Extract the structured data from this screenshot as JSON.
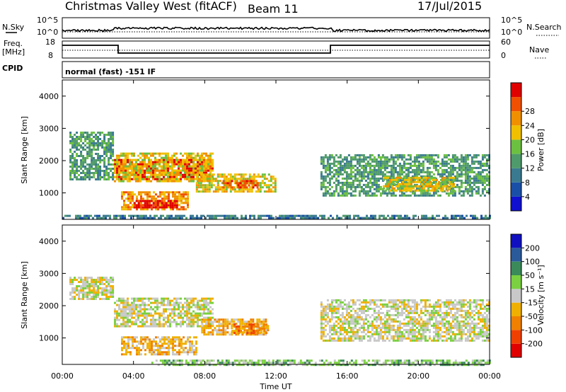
{
  "header": {
    "station": "Christmas Valley West (fitACF)",
    "beam": "Beam 11",
    "date": "17/Jul/2015"
  },
  "top_panels": {
    "nsky_label": "N.Sky",
    "nsky_ticks": [
      "10^5",
      "10^0"
    ],
    "nsearch_label": "N.Search",
    "nsearch_ticks": [
      "10^5",
      "10^0"
    ],
    "freq_label": "Freq.",
    "freq_unit": "[MHz]",
    "freq_ticks": [
      "18",
      "8"
    ],
    "nave_label": "Nave",
    "nave_ticks": [
      "60",
      "0"
    ],
    "cpid_label": "CPID",
    "cpid_text": "normal (fast) -151 IF"
  },
  "colors": {
    "power": [
      "#1010d0",
      "#1a4fa8",
      "#3a7a90",
      "#4f9a6a",
      "#6cc040",
      "#f0c000",
      "#f09000",
      "#f05000",
      "#e00000"
    ],
    "velocity": [
      "#e00000",
      "#f04000",
      "#f08000",
      "#f0b000",
      "#c8c8c8",
      "#7ad040",
      "#3a8a5a",
      "#2a5a9a",
      "#1010c0"
    ]
  },
  "chart_data": [
    {
      "type": "heatmap",
      "name": "power",
      "xlabel": "",
      "ylabel": "Slant Range [km]",
      "colorbar_label": "Power [dB]",
      "colorbar_ticks": [
        "4",
        "8",
        "12",
        "16",
        "20",
        "24",
        "28"
      ],
      "yticks": [
        "1000",
        "2000",
        "3000",
        "4000"
      ],
      "xlim_hours": [
        0,
        24
      ],
      "ylim_km": [
        180,
        4500
      ],
      "regions": [
        {
          "t0": 2.9,
          "t1": 8.4,
          "r0": 1450,
          "r1": 2050,
          "level": 8
        },
        {
          "t0": 2.9,
          "t1": 8.4,
          "r0": 1350,
          "r1": 2250,
          "level": 5
        },
        {
          "t0": 3.3,
          "t1": 7.0,
          "r0": 500,
          "r1": 1050,
          "level": 6
        },
        {
          "t0": 4.0,
          "t1": 6.5,
          "r0": 520,
          "r1": 780,
          "level": 8
        },
        {
          "t0": 7.5,
          "t1": 12.0,
          "r0": 1050,
          "r1": 1600,
          "level": 5
        },
        {
          "t0": 9.0,
          "t1": 11.0,
          "r0": 1150,
          "r1": 1400,
          "level": 7
        },
        {
          "t0": 0.4,
          "t1": 2.9,
          "r0": 1400,
          "r1": 2900,
          "level": 3
        },
        {
          "t0": 14.5,
          "t1": 24.0,
          "r0": 900,
          "r1": 2200,
          "level": 3
        },
        {
          "t0": 18.0,
          "t1": 22.0,
          "r0": 1100,
          "r1": 1500,
          "level": 5
        },
        {
          "t0": 0.0,
          "t1": 24.0,
          "r0": 190,
          "r1": 320,
          "level": 2
        }
      ]
    },
    {
      "type": "heatmap",
      "name": "velocity",
      "xlabel": "Time UT",
      "ylabel": "Slant Range [km]",
      "colorbar_label": "Velocity [m s⁻¹]",
      "colorbar_ticks": [
        "-200",
        "-100",
        "-50",
        "-15",
        "15",
        "50",
        "100",
        "200"
      ],
      "yticks": [
        "1000",
        "2000",
        "3000",
        "4000"
      ],
      "xticks": [
        "00:00",
        "04:00",
        "08:00",
        "12:00",
        "16:00",
        "20:00",
        "00:00"
      ],
      "xlim_hours": [
        0,
        24
      ],
      "ylim_km": [
        180,
        4500
      ],
      "regions": [
        {
          "t0": 2.9,
          "t1": 8.4,
          "r0": 1350,
          "r1": 2250,
          "level": 4
        },
        {
          "t0": 3.3,
          "t1": 7.5,
          "r0": 500,
          "r1": 1050,
          "level": 3
        },
        {
          "t0": 7.8,
          "t1": 11.5,
          "r0": 1100,
          "r1": 1600,
          "level": 3
        },
        {
          "t0": 9.5,
          "t1": 11.5,
          "r0": 1150,
          "r1": 1450,
          "level": 2
        },
        {
          "t0": 0.4,
          "t1": 2.9,
          "r0": 2200,
          "r1": 2900,
          "level": 4
        },
        {
          "t0": 14.5,
          "t1": 24.0,
          "r0": 900,
          "r1": 2200,
          "level": 4
        },
        {
          "t0": 5.0,
          "t1": 24.0,
          "r0": 190,
          "r1": 330,
          "level": 5
        }
      ]
    }
  ],
  "xaxis": {
    "label": "Time UT",
    "ticks": [
      "00:00",
      "04:00",
      "08:00",
      "12:00",
      "16:00",
      "20:00",
      "00:00"
    ]
  }
}
